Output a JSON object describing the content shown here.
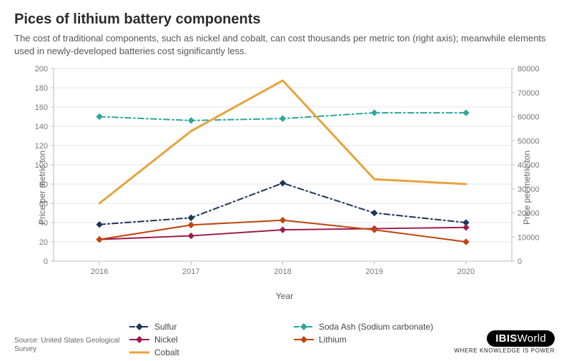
{
  "title": "Pices of lithium battery components",
  "subtitle": "The cost of traditional components, such as nickel and cobalt, can cost thousands per metric ton (right axis); meanwhile elements used in newly-developed batteries cost significantly less.",
  "chart": {
    "type": "line",
    "background_color": "#ffffff",
    "grid_color": "#e5e5e5",
    "axis_color": "#bdbdbd",
    "tick_color": "#888888",
    "categories": [
      "2016",
      "2017",
      "2018",
      "2019",
      "2020"
    ],
    "xlabel": "Year",
    "ylabel_left": "Price per metric ton",
    "ylabel_right": "Price per metric ton",
    "left_axis": {
      "min": 0,
      "max": 200,
      "step": 20
    },
    "right_axis": {
      "min": 0,
      "max": 80000,
      "step": 10000
    },
    "series": [
      {
        "name": "Sulfur",
        "axis": "left",
        "color": "#1b365d",
        "style": "dashdot",
        "marker": "diamond",
        "width": 2,
        "values": [
          38,
          45,
          81,
          50,
          40
        ]
      },
      {
        "name": "Soda Ash (Sodium carbonate)",
        "axis": "left",
        "color": "#2aa79b",
        "style": "dashdot",
        "marker": "diamond",
        "width": 2,
        "values": [
          150,
          146,
          148,
          154,
          154
        ]
      },
      {
        "name": "Nickel",
        "axis": "right",
        "color": "#9e1b4a",
        "style": "solid",
        "marker": "diamond",
        "width": 2,
        "values": [
          9000,
          10500,
          13000,
          13500,
          14000
        ]
      },
      {
        "name": "Lithium",
        "axis": "right",
        "color": "#c1440e",
        "style": "solid",
        "marker": "diamond",
        "width": 2,
        "values": [
          9000,
          15000,
          17000,
          13000,
          8000
        ]
      },
      {
        "name": "Cobalt",
        "axis": "right",
        "color": "#e8a33d",
        "style": "solid",
        "marker": "none",
        "width": 3,
        "values": [
          24000,
          54000,
          75000,
          34000,
          32000
        ]
      }
    ]
  },
  "legend_order": [
    "Sulfur",
    "Soda Ash (Sodium carbonate)",
    "Nickel",
    "Lithium",
    "Cobalt"
  ],
  "source": "Source: United States Geological Survey",
  "logo": {
    "text_a": "IBIS",
    "text_b": "World",
    "tagline": "WHERE KNOWLEDGE IS POWER"
  }
}
